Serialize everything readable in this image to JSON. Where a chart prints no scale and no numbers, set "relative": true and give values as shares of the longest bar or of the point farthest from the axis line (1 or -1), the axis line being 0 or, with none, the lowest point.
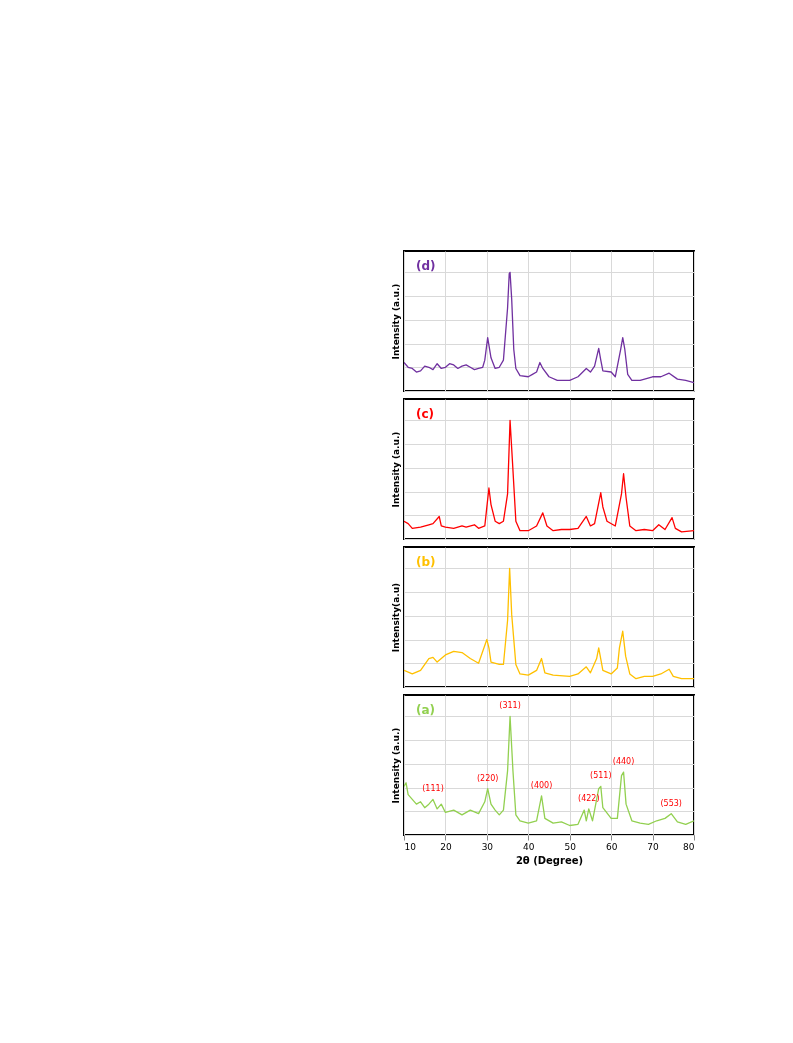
{
  "chart_data": [
    {
      "type": "line",
      "title": "(d)",
      "ylabel": "Intensity (a.u.)",
      "relative": true,
      "xlim": [
        10,
        80
      ],
      "xticks": [
        10,
        20,
        30,
        40,
        50,
        60,
        70,
        80
      ],
      "grid": true,
      "tick_labels": false,
      "x": [
        10,
        11,
        12,
        13,
        14,
        15,
        16,
        17,
        18,
        19,
        20,
        21,
        22,
        23,
        24,
        25,
        26,
        27,
        28,
        29,
        29.5,
        30.2,
        31,
        32,
        33,
        34,
        35,
        35.4,
        35.6,
        36,
        36.5,
        37,
        38,
        40,
        41,
        42,
        42.8,
        43.5,
        45,
        47,
        50,
        52,
        54,
        55,
        56,
        57,
        57.5,
        58,
        60,
        61,
        62.3,
        62.8,
        63.3,
        64,
        65,
        67,
        70,
        72,
        74,
        76,
        78,
        80
      ],
      "series": [
        {
          "color": "#7030a0",
          "values": [
            0.24,
            0.2,
            0.19,
            0.16,
            0.17,
            0.21,
            0.2,
            0.18,
            0.23,
            0.19,
            0.2,
            0.23,
            0.22,
            0.19,
            0.21,
            0.22,
            0.2,
            0.18,
            0.19,
            0.2,
            0.26,
            0.45,
            0.28,
            0.19,
            0.2,
            0.26,
            0.7,
            0.99,
            1.0,
            0.77,
            0.35,
            0.19,
            0.13,
            0.12,
            0.14,
            0.16,
            0.24,
            0.19,
            0.12,
            0.09,
            0.09,
            0.12,
            0.19,
            0.16,
            0.21,
            0.36,
            0.26,
            0.17,
            0.16,
            0.12,
            0.35,
            0.45,
            0.35,
            0.14,
            0.09,
            0.09,
            0.12,
            0.12,
            0.15,
            0.1,
            0.09,
            0.07
          ]
        }
      ]
    },
    {
      "type": "line",
      "title": "(c)",
      "ylabel": "Intensity (a.u.)",
      "relative": true,
      "xlim": [
        10,
        80
      ],
      "xticks": [
        10,
        20,
        30,
        40,
        50,
        60,
        70,
        80
      ],
      "grid": true,
      "tick_labels": false,
      "x": [
        10,
        11,
        12,
        14,
        16,
        17,
        18.5,
        19,
        20,
        22,
        24,
        25,
        27,
        28,
        29.5,
        30.5,
        31,
        32,
        33,
        34,
        35,
        35.6,
        36.2,
        37,
        38,
        40,
        42,
        43.5,
        44.5,
        46,
        48,
        50,
        52,
        54,
        55,
        56,
        57.5,
        58,
        59,
        61,
        62.5,
        63,
        63.6,
        64.5,
        66,
        68,
        70,
        71.5,
        73,
        74.7,
        75.5,
        77,
        80
      ],
      "series": [
        {
          "color": "#ff0000",
          "values": [
            0.15,
            0.13,
            0.09,
            0.1,
            0.12,
            0.13,
            0.19,
            0.11,
            0.1,
            0.09,
            0.11,
            0.1,
            0.12,
            0.09,
            0.11,
            0.43,
            0.29,
            0.15,
            0.13,
            0.15,
            0.38,
            1.0,
            0.64,
            0.15,
            0.07,
            0.07,
            0.11,
            0.22,
            0.11,
            0.07,
            0.08,
            0.08,
            0.09,
            0.19,
            0.11,
            0.13,
            0.39,
            0.27,
            0.15,
            0.11,
            0.38,
            0.55,
            0.35,
            0.11,
            0.07,
            0.08,
            0.07,
            0.12,
            0.08,
            0.18,
            0.09,
            0.06,
            0.07
          ]
        }
      ]
    },
    {
      "type": "line",
      "title": "(b)",
      "ylabel": "Intensity(a.u)",
      "relative": true,
      "xlim": [
        10,
        80
      ],
      "xticks": [
        10,
        20,
        30,
        40,
        50,
        60,
        70,
        80
      ],
      "grid": true,
      "tick_labels": false,
      "x": [
        10,
        12,
        14,
        16,
        17,
        18,
        20,
        22,
        24,
        26,
        28,
        30,
        30.5,
        31,
        33,
        34,
        35,
        35.5,
        36,
        37,
        38,
        40,
        42,
        43.2,
        44,
        46,
        50,
        52,
        54,
        55,
        56.5,
        57,
        58,
        60,
        61.5,
        62,
        62.8,
        63.5,
        64.5,
        66,
        68,
        70,
        72,
        74,
        75,
        77,
        80
      ],
      "series": [
        {
          "color": "#ffc000",
          "values": [
            0.14,
            0.11,
            0.14,
            0.24,
            0.25,
            0.21,
            0.27,
            0.3,
            0.29,
            0.24,
            0.2,
            0.4,
            0.33,
            0.21,
            0.19,
            0.19,
            0.56,
            1.0,
            0.61,
            0.19,
            0.11,
            0.1,
            0.14,
            0.24,
            0.12,
            0.1,
            0.09,
            0.11,
            0.17,
            0.12,
            0.24,
            0.33,
            0.14,
            0.11,
            0.16,
            0.33,
            0.47,
            0.26,
            0.11,
            0.07,
            0.09,
            0.09,
            0.11,
            0.15,
            0.09,
            0.07,
            0.07
          ]
        }
      ]
    },
    {
      "type": "line",
      "title": "(a)",
      "ylabel": "Intensity (a.u.)",
      "xlabel": "2θ (Degree)",
      "relative": true,
      "xlim": [
        10,
        80
      ],
      "xticks": [
        10,
        20,
        30,
        40,
        50,
        60,
        70,
        80
      ],
      "grid": true,
      "tick_labels": "x",
      "x": [
        10,
        10.5,
        11,
        12,
        13,
        14,
        15,
        16,
        17,
        18,
        19,
        20,
        22,
        24,
        26,
        28,
        29.5,
        30.2,
        31,
        32,
        33,
        34,
        35,
        35.6,
        36.3,
        37,
        38,
        40,
        42,
        43.2,
        44,
        46,
        48,
        50,
        52,
        53.5,
        54,
        54.6,
        55.5,
        57,
        57.5,
        58,
        60,
        61.5,
        62.5,
        63,
        63.6,
        65,
        67,
        69,
        71,
        73,
        74.5,
        76,
        78,
        80
      ],
      "series": [
        {
          "color": "#92d050",
          "values": [
            0.41,
            0.44,
            0.34,
            0.3,
            0.26,
            0.28,
            0.23,
            0.26,
            0.3,
            0.22,
            0.26,
            0.19,
            0.21,
            0.17,
            0.21,
            0.18,
            0.28,
            0.39,
            0.26,
            0.21,
            0.17,
            0.21,
            0.54,
            1.0,
            0.54,
            0.17,
            0.12,
            0.1,
            0.12,
            0.33,
            0.14,
            0.1,
            0.11,
            0.08,
            0.09,
            0.21,
            0.12,
            0.22,
            0.12,
            0.39,
            0.41,
            0.23,
            0.14,
            0.14,
            0.5,
            0.53,
            0.26,
            0.12,
            0.1,
            0.09,
            0.12,
            0.14,
            0.18,
            0.11,
            0.09,
            0.12
          ]
        }
      ],
      "annotations": [
        {
          "text": "(111)",
          "x": 17,
          "y": 0.3
        },
        {
          "text": "(220)",
          "x": 30.2,
          "y": 0.39
        },
        {
          "text": "(311)",
          "x": 35.6,
          "y": 1.0
        },
        {
          "text": "(400)",
          "x": 43.2,
          "y": 0.33
        },
        {
          "text": "(422)",
          "x": 54.6,
          "y": 0.22
        },
        {
          "text": "(511)",
          "x": 57.5,
          "y": 0.41
        },
        {
          "text": "(440)",
          "x": 63,
          "y": 0.53
        },
        {
          "text": "(553)",
          "x": 74.5,
          "y": 0.18
        }
      ]
    }
  ]
}
